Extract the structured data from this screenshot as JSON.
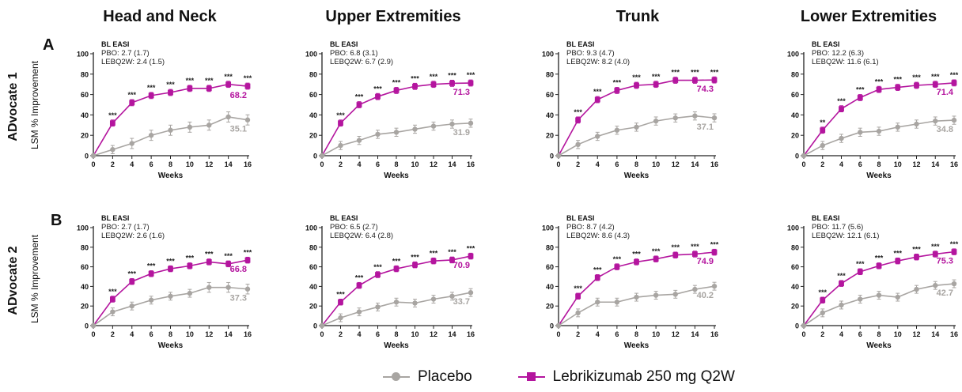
{
  "regions": [
    "Head and Neck",
    "Upper Extremities",
    "Trunk",
    "Lower Extremities"
  ],
  "rows": [
    {
      "letter": "A",
      "label": "ADvocate 1",
      "ylabel": "LSM % Improvement"
    },
    {
      "letter": "B",
      "label": "ADvocate 2",
      "ylabel": "LSM % Improvement"
    }
  ],
  "legend": {
    "placebo": "Placebo",
    "active": "Lebrikizumab 250 mg Q2W"
  },
  "colors": {
    "placebo": "#a8a5a2",
    "active": "#b4159e"
  },
  "chart_data": [
    {
      "type": "line",
      "row": "A",
      "region": "Head and Neck",
      "xlabel": "Weeks",
      "ylabel": "LSM % Improvement",
      "ylim": [
        0,
        100
      ],
      "x": [
        0,
        2,
        4,
        6,
        8,
        10,
        12,
        14,
        16
      ],
      "xticks": [
        "0",
        "2",
        "4",
        "6",
        "8",
        "10",
        "12",
        "14",
        "16"
      ],
      "yticks": [
        "0",
        "20",
        "40",
        "60",
        "80",
        "100"
      ],
      "bl_title": "BL EASI",
      "bl_pbo": "PBO: 2.7 (1.7)",
      "bl_leb": "LEBQ2W: 2.4 (1.5)",
      "series": [
        {
          "name": "Placebo",
          "values": [
            0,
            6,
            12,
            20,
            25,
            28,
            30,
            38,
            35.1
          ],
          "err": [
            0,
            4,
            5,
            5,
            5,
            5,
            5,
            5,
            5
          ]
        },
        {
          "name": "Lebrikizumab 250 mg Q2W",
          "values": [
            0,
            32,
            52,
            59,
            62,
            66,
            66,
            70,
            68.2
          ],
          "err": [
            0,
            3,
            3,
            3,
            3,
            3,
            3,
            3,
            3
          ]
        }
      ],
      "sig": [
        "",
        "***",
        "***",
        "***",
        "***",
        "***",
        "***",
        "***",
        "***"
      ],
      "end_labels": {
        "placebo": "35.1",
        "active": "68.2"
      }
    },
    {
      "type": "line",
      "row": "A",
      "region": "Upper Extremities",
      "xlabel": "Weeks",
      "ylabel": "LSM % Improvement",
      "ylim": [
        0,
        100
      ],
      "x": [
        0,
        2,
        4,
        6,
        8,
        10,
        12,
        14,
        16
      ],
      "xticks": [
        "0",
        "2",
        "4",
        "6",
        "8",
        "10",
        "12",
        "14",
        "16"
      ],
      "yticks": [
        "0",
        "20",
        "40",
        "60",
        "80",
        "100"
      ],
      "bl_title": "BL EASI",
      "bl_pbo": "PBO: 6.8 (3.1)",
      "bl_leb": "LEBQ2W: 6.7 (2.9)",
      "series": [
        {
          "name": "Placebo",
          "values": [
            0,
            10,
            15,
            21,
            23,
            26,
            29,
            31,
            31.9
          ],
          "err": [
            0,
            4,
            4,
            4,
            4,
            4,
            4,
            4,
            4
          ]
        },
        {
          "name": "Lebrikizumab 250 mg Q2W",
          "values": [
            0,
            32,
            50,
            58,
            64,
            68,
            70,
            71,
            71.3
          ],
          "err": [
            0,
            3,
            3,
            3,
            3,
            3,
            3,
            3,
            3
          ]
        }
      ],
      "sig": [
        "",
        "***",
        "***",
        "***",
        "***",
        "***",
        "***",
        "***",
        "***"
      ],
      "end_labels": {
        "placebo": "31.9",
        "active": "71.3"
      }
    },
    {
      "type": "line",
      "row": "A",
      "region": "Trunk",
      "xlabel": "Weeks",
      "ylabel": "LSM % Improvement",
      "ylim": [
        0,
        100
      ],
      "x": [
        0,
        2,
        4,
        6,
        8,
        10,
        12,
        14,
        16
      ],
      "xticks": [
        "0",
        "2",
        "4",
        "6",
        "8",
        "10",
        "12",
        "14",
        "16"
      ],
      "yticks": [
        "0",
        "20",
        "40",
        "60",
        "80",
        "100"
      ],
      "bl_title": "BL EASI",
      "bl_pbo": "PBO: 9.3 (4.7)",
      "bl_leb": "LEBQ2W: 8.2 (4.0)",
      "series": [
        {
          "name": "Placebo",
          "values": [
            0,
            11,
            19,
            25,
            28,
            34,
            37,
            39,
            37.1
          ],
          "err": [
            0,
            4,
            4,
            4,
            4,
            4,
            4,
            4,
            4
          ]
        },
        {
          "name": "Lebrikizumab 250 mg Q2W",
          "values": [
            0,
            35,
            55,
            64,
            69,
            70,
            74,
            74,
            74.3
          ],
          "err": [
            0,
            3,
            3,
            3,
            3,
            3,
            3,
            3,
            3
          ]
        }
      ],
      "sig": [
        "",
        "***",
        "***",
        "***",
        "***",
        "***",
        "***",
        "***",
        "***"
      ],
      "end_labels": {
        "placebo": "37.1",
        "active": "74.3"
      }
    },
    {
      "type": "line",
      "row": "A",
      "region": "Lower Extremities",
      "xlabel": "Weeks",
      "ylabel": "LSM % Improvement",
      "ylim": [
        0,
        100
      ],
      "x": [
        0,
        2,
        4,
        6,
        8,
        10,
        12,
        14,
        16
      ],
      "xticks": [
        "0",
        "2",
        "4",
        "6",
        "8",
        "10",
        "12",
        "14",
        "16"
      ],
      "yticks": [
        "0",
        "20",
        "40",
        "60",
        "80",
        "100"
      ],
      "bl_title": "BL EASI",
      "bl_pbo": "PBO: 12.2 (6.3)",
      "bl_leb": "LEBQ2W: 11.6 (6.1)",
      "series": [
        {
          "name": "Placebo",
          "values": [
            0,
            10,
            17,
            23,
            24,
            28,
            31,
            34,
            34.8
          ],
          "err": [
            0,
            4,
            4,
            4,
            4,
            4,
            4,
            4,
            4
          ]
        },
        {
          "name": "Lebrikizumab 250 mg Q2W",
          "values": [
            0,
            25,
            46,
            57,
            65,
            67,
            69,
            70,
            71.4
          ],
          "err": [
            0,
            3,
            3,
            3,
            3,
            3,
            3,
            3,
            3
          ]
        }
      ],
      "sig": [
        "",
        "**",
        "***",
        "***",
        "***",
        "***",
        "***",
        "***",
        "***"
      ],
      "end_labels": {
        "placebo": "34.8",
        "active": "71.4"
      }
    },
    {
      "type": "line",
      "row": "B",
      "region": "Head and Neck",
      "xlabel": "Weeks",
      "ylabel": "LSM % Improvement",
      "ylim": [
        0,
        100
      ],
      "x": [
        0,
        2,
        4,
        6,
        8,
        10,
        12,
        14,
        16
      ],
      "xticks": [
        "0",
        "2",
        "4",
        "6",
        "8",
        "10",
        "12",
        "14",
        "16"
      ],
      "yticks": [
        "0",
        "20",
        "40",
        "60",
        "80",
        "100"
      ],
      "bl_title": "BL EASI",
      "bl_pbo": "PBO: 2.7 (1.7)",
      "bl_leb": "LEBQ2W: 2.6 (1.6)",
      "series": [
        {
          "name": "Placebo",
          "values": [
            0,
            14,
            20,
            26,
            30,
            33,
            39,
            39,
            37.3
          ],
          "err": [
            0,
            4,
            4,
            4,
            4,
            4,
            5,
            5,
            5
          ]
        },
        {
          "name": "Lebrikizumab 250 mg Q2W",
          "values": [
            0,
            27,
            45,
            53,
            58,
            61,
            65,
            63,
            66.8
          ],
          "err": [
            0,
            3,
            3,
            3,
            3,
            3,
            3,
            3,
            3
          ]
        }
      ],
      "sig": [
        "",
        "***",
        "***",
        "***",
        "***",
        "***",
        "***",
        "***",
        "***"
      ],
      "end_labels": {
        "placebo": "37.3",
        "active": "66.8"
      }
    },
    {
      "type": "line",
      "row": "B",
      "region": "Upper Extremities",
      "xlabel": "Weeks",
      "ylabel": "LSM % Improvement",
      "ylim": [
        0,
        100
      ],
      "x": [
        0,
        2,
        4,
        6,
        8,
        10,
        12,
        14,
        16
      ],
      "xticks": [
        "0",
        "2",
        "4",
        "6",
        "8",
        "10",
        "12",
        "14",
        "16"
      ],
      "yticks": [
        "0",
        "20",
        "40",
        "60",
        "80",
        "100"
      ],
      "bl_title": "BL EASI",
      "bl_pbo": "PBO: 6.5 (2.7)",
      "bl_leb": "LEBQ2W: 6.4 (2.8)",
      "series": [
        {
          "name": "Placebo",
          "values": [
            0,
            8,
            14,
            19,
            24,
            23,
            27,
            30,
            33.7
          ],
          "err": [
            0,
            4,
            4,
            4,
            4,
            4,
            4,
            4,
            4
          ]
        },
        {
          "name": "Lebrikizumab 250 mg Q2W",
          "values": [
            0,
            24,
            41,
            52,
            58,
            62,
            66,
            67,
            70.9
          ],
          "err": [
            0,
            3,
            3,
            3,
            3,
            3,
            3,
            3,
            3
          ]
        }
      ],
      "sig": [
        "",
        "***",
        "***",
        "***",
        "***",
        "***",
        "***",
        "***",
        "***"
      ],
      "end_labels": {
        "placebo": "33.7",
        "active": "70.9"
      }
    },
    {
      "type": "line",
      "row": "B",
      "region": "Trunk",
      "xlabel": "Weeks",
      "ylabel": "LSM % Improvement",
      "ylim": [
        0,
        100
      ],
      "x": [
        0,
        2,
        4,
        6,
        8,
        10,
        12,
        14,
        16
      ],
      "xticks": [
        "0",
        "2",
        "4",
        "6",
        "8",
        "10",
        "12",
        "14",
        "16"
      ],
      "yticks": [
        "0",
        "20",
        "40",
        "60",
        "80",
        "100"
      ],
      "bl_title": "BL EASI",
      "bl_pbo": "PBO: 8.7 (4.2)",
      "bl_leb": "LEBQ2W: 8.6 (4.3)",
      "series": [
        {
          "name": "Placebo",
          "values": [
            0,
            13,
            24,
            24,
            29,
            31,
            32,
            37,
            40.2
          ],
          "err": [
            0,
            4,
            4,
            4,
            4,
            4,
            4,
            4,
            4
          ]
        },
        {
          "name": "Lebrikizumab 250 mg Q2W",
          "values": [
            0,
            30,
            49,
            60,
            65,
            68,
            72,
            73,
            74.9
          ],
          "err": [
            0,
            3,
            3,
            3,
            3,
            3,
            3,
            3,
            3
          ]
        }
      ],
      "sig": [
        "",
        "***",
        "***",
        "***",
        "***",
        "***",
        "***",
        "***",
        "***"
      ],
      "end_labels": {
        "placebo": "40.2",
        "active": "74.9"
      }
    },
    {
      "type": "line",
      "row": "B",
      "region": "Lower Extremities",
      "xlabel": "Weeks",
      "ylabel": "LSM % Improvement",
      "ylim": [
        0,
        100
      ],
      "x": [
        0,
        2,
        4,
        6,
        8,
        10,
        12,
        14,
        16
      ],
      "xticks": [
        "0",
        "2",
        "4",
        "6",
        "8",
        "10",
        "12",
        "14",
        "16"
      ],
      "yticks": [
        "0",
        "20",
        "40",
        "60",
        "80",
        "100"
      ],
      "bl_title": "BL EASI",
      "bl_pbo": "PBO: 11.7 (5.6)",
      "bl_leb": "LEBQ2W: 12.1 (6.1)",
      "series": [
        {
          "name": "Placebo",
          "values": [
            0,
            13,
            21,
            27,
            31,
            29,
            37,
            41,
            42.7
          ],
          "err": [
            0,
            4,
            4,
            4,
            4,
            4,
            4,
            4,
            4
          ]
        },
        {
          "name": "Lebrikizumab 250 mg Q2W",
          "values": [
            0,
            26,
            43,
            55,
            61,
            66,
            70,
            73,
            75.3
          ],
          "err": [
            0,
            3,
            3,
            3,
            3,
            3,
            3,
            3,
            3
          ]
        }
      ],
      "sig": [
        "",
        "***",
        "***",
        "***",
        "***",
        "***",
        "***",
        "***",
        "***"
      ],
      "end_labels": {
        "placebo": "42.7",
        "active": "75.3"
      }
    }
  ]
}
